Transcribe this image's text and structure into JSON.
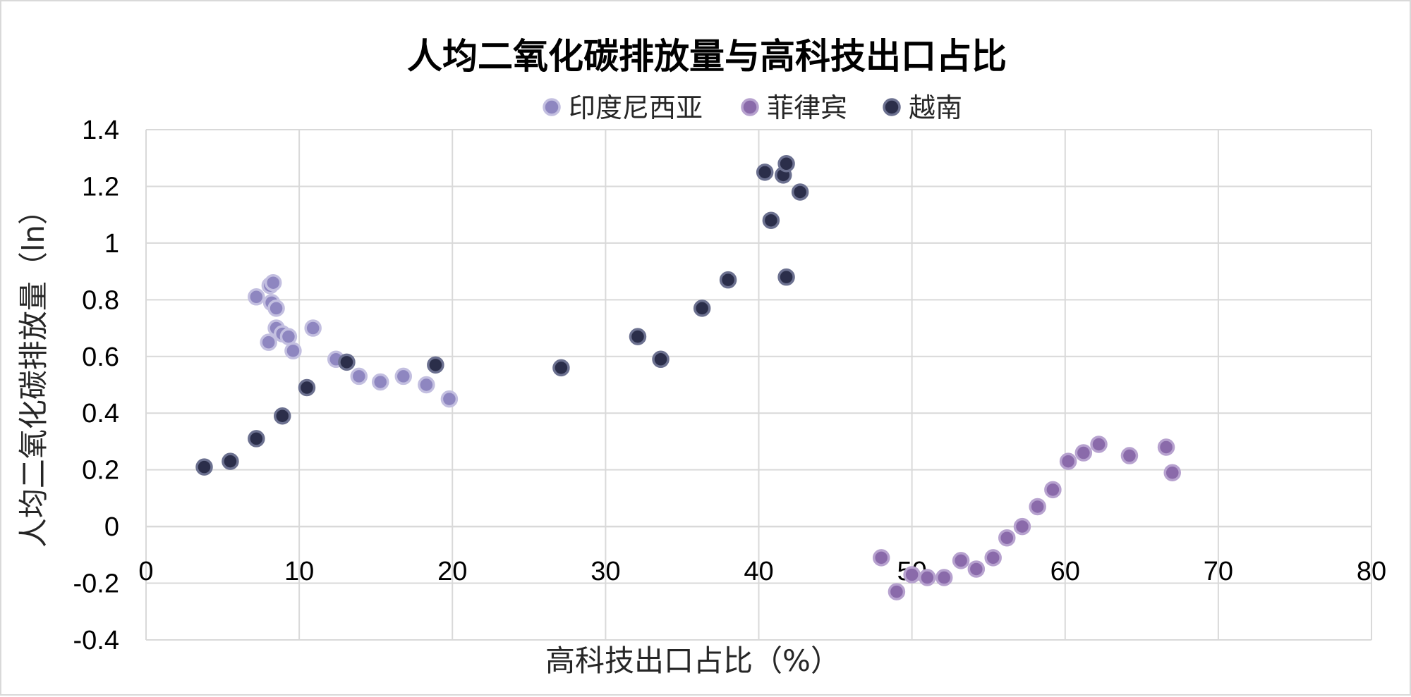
{
  "chart_data": {
    "type": "scatter",
    "title": "人均二氧化碳排放量与高科技出口占比",
    "xlabel": "高科技出口占比（%）",
    "ylabel": "人均二氧化碳排放量（ln）",
    "xlim": [
      0,
      80
    ],
    "ylim": [
      -0.4,
      1.4
    ],
    "x_ticks": [
      "0",
      "10",
      "20",
      "30",
      "40",
      "50",
      "60",
      "70",
      "80"
    ],
    "y_ticks": [
      "-0.4",
      "-0.2",
      "0",
      "0.2",
      "0.4",
      "0.6",
      "0.8",
      "1",
      "1.2",
      "1.4"
    ],
    "grid": true,
    "legend_position": "top",
    "series": [
      {
        "name": "印度尼西亚",
        "color": "#8e86c0",
        "stroke": "#c3bfe0",
        "points": [
          [
            7.2,
            0.81
          ],
          [
            8.1,
            0.85
          ],
          [
            8.3,
            0.86
          ],
          [
            8.2,
            0.79
          ],
          [
            8.5,
            0.77
          ],
          [
            8.0,
            0.65
          ],
          [
            8.5,
            0.7
          ],
          [
            8.9,
            0.68
          ],
          [
            9.3,
            0.67
          ],
          [
            9.6,
            0.62
          ],
          [
            10.9,
            0.7
          ],
          [
            12.4,
            0.59
          ],
          [
            13.9,
            0.53
          ],
          [
            15.3,
            0.51
          ],
          [
            16.8,
            0.53
          ],
          [
            18.3,
            0.5
          ],
          [
            19.8,
            0.45
          ]
        ]
      },
      {
        "name": "菲律宾",
        "color": "#8a6aaa",
        "stroke": "#b7a2cf",
        "points": [
          [
            48.0,
            -0.11
          ],
          [
            49.0,
            -0.23
          ],
          [
            50.0,
            -0.17
          ],
          [
            51.0,
            -0.18
          ],
          [
            52.1,
            -0.18
          ],
          [
            53.2,
            -0.12
          ],
          [
            54.2,
            -0.15
          ],
          [
            55.3,
            -0.11
          ],
          [
            56.2,
            -0.04
          ],
          [
            57.2,
            0.0
          ],
          [
            58.2,
            0.07
          ],
          [
            59.2,
            0.13
          ],
          [
            60.2,
            0.23
          ],
          [
            61.2,
            0.26
          ],
          [
            62.2,
            0.29
          ],
          [
            64.2,
            0.25
          ],
          [
            66.6,
            0.28
          ],
          [
            67.0,
            0.19
          ]
        ]
      },
      {
        "name": "越南",
        "color": "#2b2e4a",
        "stroke": "#6c7190",
        "points": [
          [
            3.8,
            0.21
          ],
          [
            5.5,
            0.23
          ],
          [
            7.2,
            0.31
          ],
          [
            8.9,
            0.39
          ],
          [
            10.5,
            0.49
          ],
          [
            13.1,
            0.58
          ],
          [
            18.9,
            0.57
          ],
          [
            27.1,
            0.56
          ],
          [
            32.1,
            0.67
          ],
          [
            33.6,
            0.59
          ],
          [
            36.3,
            0.77
          ],
          [
            38.0,
            0.87
          ],
          [
            40.4,
            1.25
          ],
          [
            40.8,
            1.08
          ],
          [
            41.6,
            1.24
          ],
          [
            41.8,
            1.28
          ],
          [
            42.7,
            1.18
          ],
          [
            41.8,
            0.88
          ]
        ]
      }
    ]
  }
}
